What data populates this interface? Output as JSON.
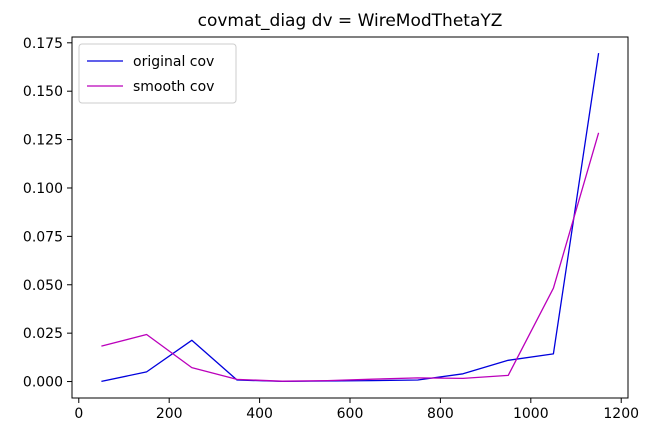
{
  "chart_data": {
    "type": "line",
    "title": "covmat_diag dv = WireModThetaYZ",
    "xlabel": "",
    "ylabel": "",
    "xlim": [
      -15,
      1215
    ],
    "ylim": [
      -0.0085,
      0.178
    ],
    "x_ticks": [
      0,
      200,
      400,
      600,
      800,
      1000,
      1200
    ],
    "x_tick_labels": [
      "0",
      "200",
      "400",
      "600",
      "800",
      "1000",
      "1200"
    ],
    "y_ticks": [
      0.0,
      0.025,
      0.05,
      0.075,
      0.1,
      0.125,
      0.15,
      0.175
    ],
    "y_tick_labels": [
      "0.000",
      "0.025",
      "0.050",
      "0.075",
      "0.100",
      "0.125",
      "0.150",
      "0.175"
    ],
    "grid": false,
    "legend_position": "top-left",
    "x": [
      50,
      150,
      250,
      350,
      450,
      550,
      650,
      750,
      850,
      950,
      1050,
      1150
    ],
    "series": [
      {
        "name": "original cov",
        "color": "#0000dd",
        "values": [
          0.0001,
          0.005,
          0.0213,
          0.0008,
          0.0001,
          0.0003,
          0.0005,
          0.0008,
          0.004,
          0.011,
          0.0143,
          0.1697
        ]
      },
      {
        "name": "smooth cov",
        "color": "#bb00bb",
        "values": [
          0.0183,
          0.0243,
          0.0072,
          0.0011,
          0.0002,
          0.0005,
          0.0012,
          0.0019,
          0.0016,
          0.0032,
          0.0482,
          0.1285
        ]
      }
    ]
  }
}
